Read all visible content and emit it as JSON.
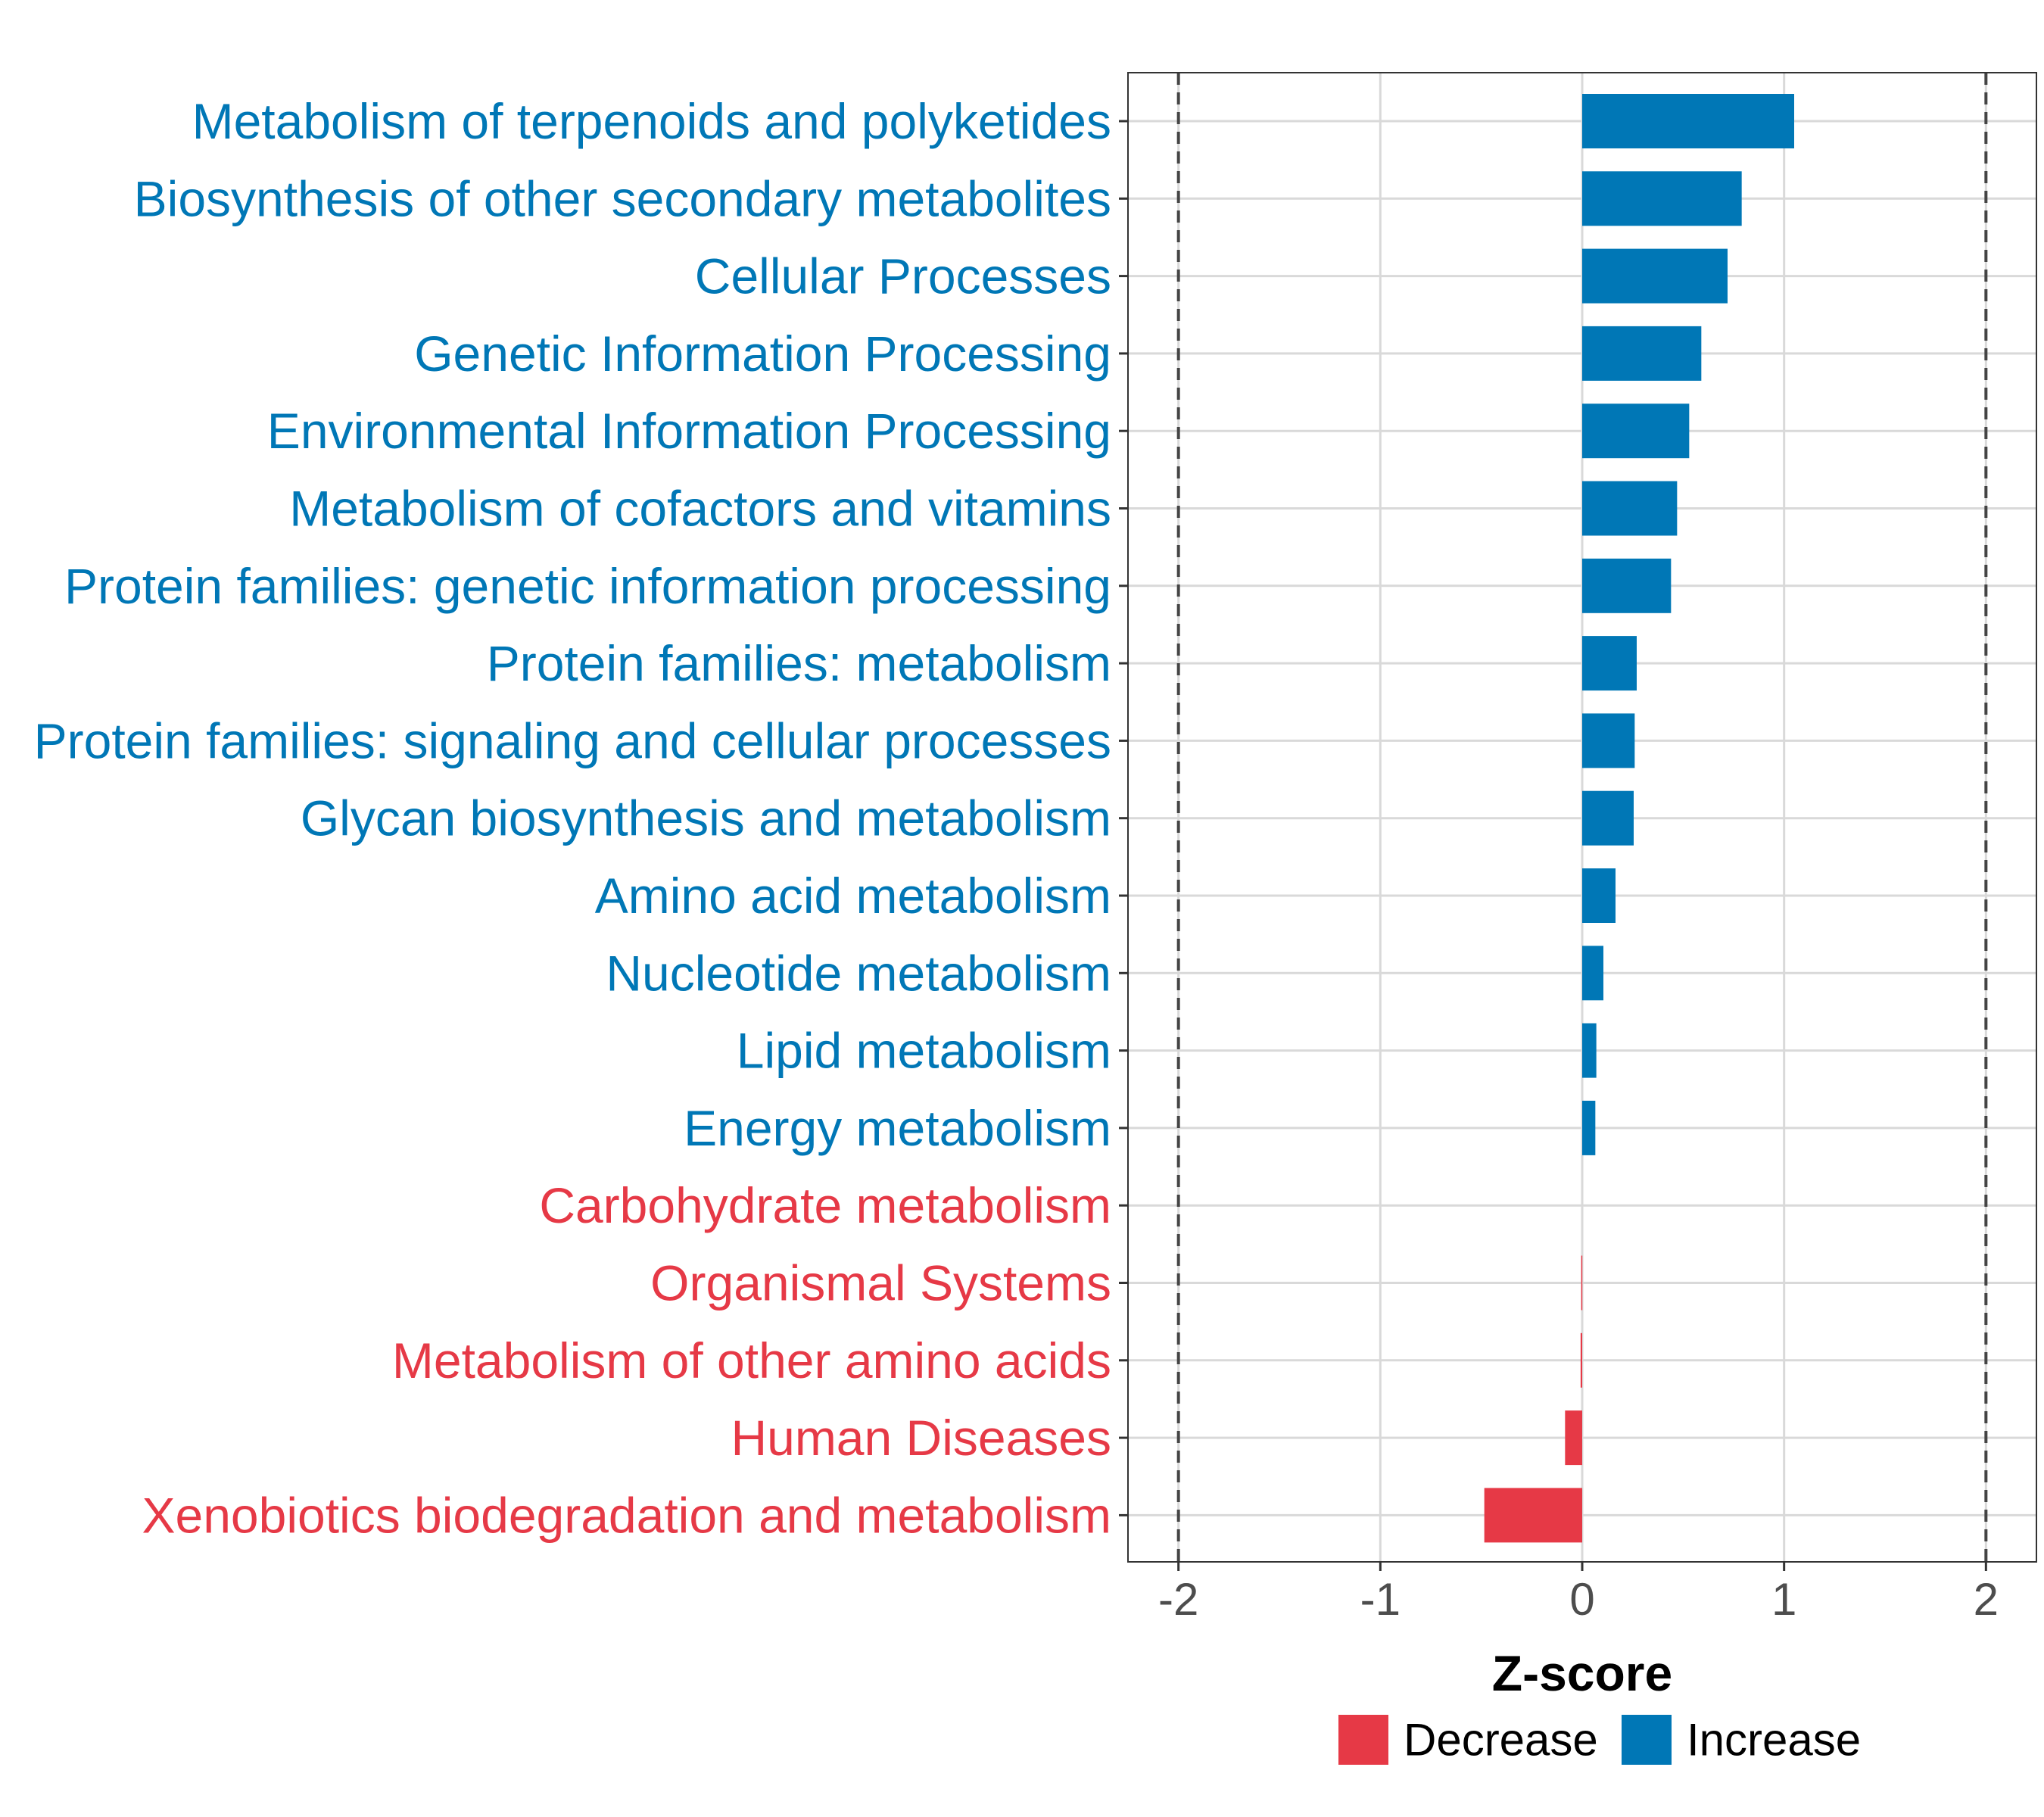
{
  "chart_data": {
    "type": "bar",
    "orientation": "horizontal",
    "categories": [
      "Metabolism of terpenoids and polyketides",
      "Biosynthesis of other secondary metabolites",
      "Cellular Processes",
      "Genetic Information Processing",
      "Environmental Information Processing",
      "Metabolism of cofactors and vitamins",
      "Protein families: genetic information processing",
      "Protein families: metabolism",
      "Protein families: signaling and cellular processes",
      "Glycan biosynthesis and metabolism",
      "Amino acid metabolism",
      "Nucleotide metabolism",
      "Lipid metabolism",
      "Energy metabolism",
      "Carbohydrate metabolism",
      "Organismal Systems",
      "Metabolism of other amino acids",
      "Human Diseases",
      "Xenobiotics biodegradation and metabolism"
    ],
    "values": [
      1.05,
      0.79,
      0.72,
      0.59,
      0.53,
      0.47,
      0.44,
      0.27,
      0.26,
      0.255,
      0.165,
      0.105,
      0.07,
      0.065,
      0.0,
      -0.005,
      -0.008,
      -0.085,
      -0.485
    ],
    "groups": [
      "Increase",
      "Increase",
      "Increase",
      "Increase",
      "Increase",
      "Increase",
      "Increase",
      "Increase",
      "Increase",
      "Increase",
      "Increase",
      "Increase",
      "Increase",
      "Increase",
      "Decrease",
      "Decrease",
      "Decrease",
      "Decrease",
      "Decrease"
    ],
    "xlabel": "Z-score",
    "ylabel": "",
    "xlim": [
      -2.25,
      2.25
    ],
    "x_ticks": [
      "-2",
      "-1",
      "0",
      "1",
      "2"
    ],
    "x_tick_values": [
      -2,
      -1,
      0,
      1,
      2
    ],
    "reference_lines": [
      -2,
      2
    ],
    "grid": true,
    "legend": {
      "position": "bottom",
      "items": [
        {
          "label": "Decrease",
          "color": "#e63946"
        },
        {
          "label": "Increase",
          "color": "#0077b6"
        }
      ]
    },
    "colors": {
      "Increase": "#0077b6",
      "Decrease": "#e63946"
    }
  }
}
